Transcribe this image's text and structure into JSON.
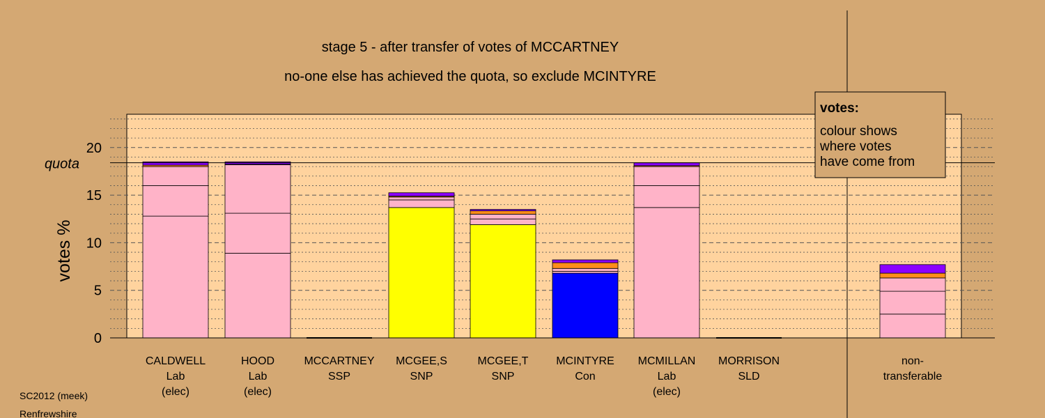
{
  "chart_data": {
    "type": "bar",
    "stacked": true,
    "title": "stage 5 - after transfer of votes of MCCARTNEY",
    "subtitle": "no-one else has achieved the quota, so exclude MCINTYRE",
    "ylabel": "votes %",
    "quota_label": "quota",
    "quota_value": 18.4,
    "ylim": [
      0,
      23.5
    ],
    "yticks": [
      0,
      5,
      10,
      15,
      20
    ],
    "grid": true,
    "legend": {
      "title": "votes:",
      "lines": [
        "colour shows",
        "where votes",
        "have come from"
      ],
      "placement": "top-right"
    },
    "colors": {
      "lab": "#ffb3c8",
      "snp": "#ffff00",
      "con": "#0000ff",
      "orange": "#ff8c1a",
      "purple": "#8b00ff",
      "background": "#d4a873",
      "plot": "#ffd39e"
    },
    "categories": [
      {
        "lines": [
          "CALDWELL",
          "Lab",
          "(elec)"
        ],
        "segments": [
          {
            "value": 12.8,
            "color": "lab"
          },
          {
            "value": 3.2,
            "color": "lab"
          },
          {
            "value": 2.0,
            "color": "lab"
          },
          {
            "value": 0.15,
            "color": "orange"
          },
          {
            "value": 0.35,
            "color": "purple"
          }
        ]
      },
      {
        "lines": [
          "HOOD",
          "Lab",
          "(elec)"
        ],
        "segments": [
          {
            "value": 8.9,
            "color": "lab"
          },
          {
            "value": 4.2,
            "color": "lab"
          },
          {
            "value": 5.1,
            "color": "lab"
          },
          {
            "value": 0.05,
            "color": "orange"
          },
          {
            "value": 0.25,
            "color": "purple"
          }
        ]
      },
      {
        "lines": [
          "MCCARTNEY",
          "SSP"
        ],
        "segments": []
      },
      {
        "lines": [
          "MCGEE,S",
          "SNP"
        ],
        "segments": [
          {
            "value": 13.7,
            "color": "snp"
          },
          {
            "value": 0.8,
            "color": "lab"
          },
          {
            "value": 0.3,
            "color": "lab"
          },
          {
            "value": 0.1,
            "color": "orange"
          },
          {
            "value": 0.35,
            "color": "purple"
          }
        ]
      },
      {
        "lines": [
          "MCGEE,T",
          "SNP"
        ],
        "segments": [
          {
            "value": 11.9,
            "color": "snp"
          },
          {
            "value": 0.6,
            "color": "lab"
          },
          {
            "value": 0.5,
            "color": "lab"
          },
          {
            "value": 0.35,
            "color": "orange"
          },
          {
            "value": 0.15,
            "color": "purple"
          }
        ]
      },
      {
        "lines": [
          "MCINTYRE",
          "Con"
        ],
        "segments": [
          {
            "value": 6.8,
            "color": "con"
          },
          {
            "value": 0.2,
            "color": "lab"
          },
          {
            "value": 0.3,
            "color": "lab"
          },
          {
            "value": 0.6,
            "color": "orange"
          },
          {
            "value": 0.3,
            "color": "purple"
          }
        ]
      },
      {
        "lines": [
          "MCMILLAN",
          "Lab",
          "(elec)"
        ],
        "segments": [
          {
            "value": 13.7,
            "color": "lab"
          },
          {
            "value": 2.3,
            "color": "lab"
          },
          {
            "value": 2.0,
            "color": "lab"
          },
          {
            "value": 0.1,
            "color": "orange"
          },
          {
            "value": 0.3,
            "color": "purple"
          }
        ]
      },
      {
        "lines": [
          "MORRISON",
          "SLD"
        ],
        "segments": []
      },
      {
        "lines": [
          "non-",
          "transferable"
        ],
        "segments": [
          {
            "value": 2.5,
            "color": "lab"
          },
          {
            "value": 2.4,
            "color": "lab"
          },
          {
            "value": 1.4,
            "color": "lab"
          },
          {
            "value": 0.5,
            "color": "orange"
          },
          {
            "value": 0.9,
            "color": "purple"
          }
        ]
      }
    ]
  },
  "footer": {
    "line1": "SC2012 (meek)",
    "line2": "Renfrewshire"
  }
}
